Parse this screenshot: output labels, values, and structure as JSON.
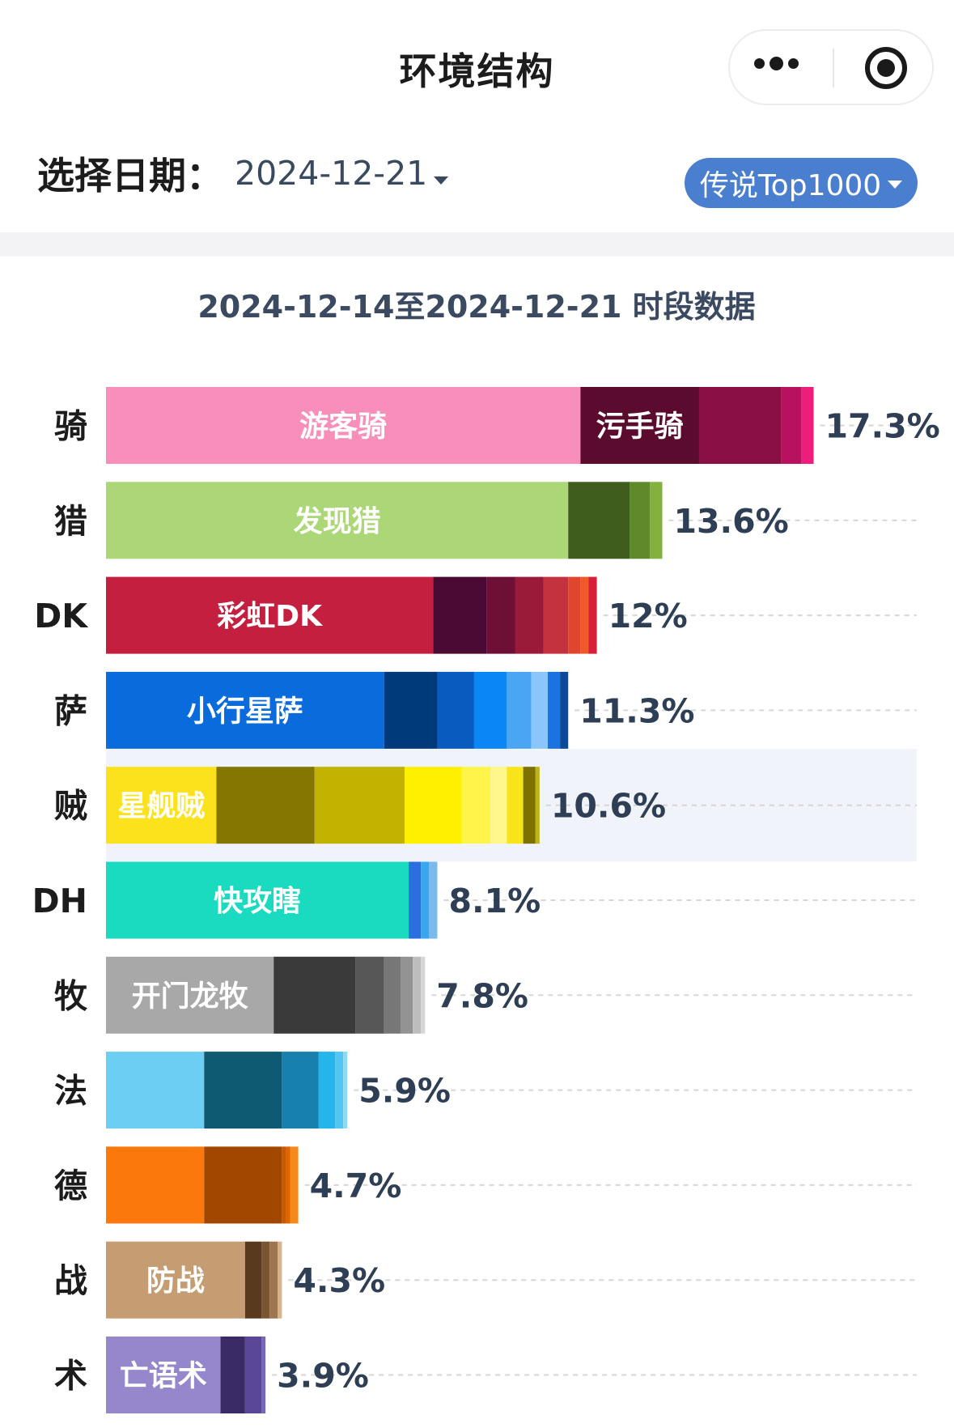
{
  "header": {
    "title": "环境结构"
  },
  "filters": {
    "date_label": "选择日期：",
    "date_value": "2024-12-21",
    "rank_label": "传说Top1000"
  },
  "chart_data": {
    "type": "bar",
    "orientation": "horizontal",
    "stacked": true,
    "title": "2024-12-14至2024-12-21 时段数据",
    "xlabel": "",
    "ylabel": "",
    "xlim": [
      0,
      20
    ],
    "grid": "dashed horizontal guide per row",
    "highlighted_category": "贼",
    "categories": [
      "骑",
      "猎",
      "DK",
      "萨",
      "贼",
      "DH",
      "牧",
      "法",
      "德",
      "战",
      "术"
    ],
    "totals": [
      "17.3%",
      "13.6%",
      "12%",
      "11.3%",
      "10.6%",
      "8.1%",
      "7.8%",
      "5.9%",
      "4.7%",
      "4.3%",
      "3.9%"
    ],
    "rows": [
      {
        "class": "骑",
        "total": 17.3,
        "segments": [
          {
            "name": "游客骑",
            "value": 11.6,
            "color": "#f78fba"
          },
          {
            "name": "污手骑",
            "value": 2.9,
            "color": "#5b0b2e"
          },
          {
            "name": "",
            "value": 2.0,
            "color": "#8a0f45"
          },
          {
            "name": "",
            "value": 0.5,
            "color": "#b8125f"
          },
          {
            "name": "",
            "value": 0.3,
            "color": "#ee1c7a"
          }
        ]
      },
      {
        "class": "猎",
        "total": 13.6,
        "segments": [
          {
            "name": "发现猎",
            "value": 11.3,
            "color": "#abd777"
          },
          {
            "name": "",
            "value": 1.5,
            "color": "#3f5d1d"
          },
          {
            "name": "",
            "value": 0.5,
            "color": "#5f8a2c"
          },
          {
            "name": "",
            "value": 0.3,
            "color": "#82b13f"
          }
        ]
      },
      {
        "class": "DK",
        "total": 12,
        "segments": [
          {
            "name": "彩虹DK",
            "value": 8.0,
            "color": "#c41f3e"
          },
          {
            "name": "",
            "value": 1.3,
            "color": "#4a0a33"
          },
          {
            "name": "",
            "value": 0.7,
            "color": "#6e0f36"
          },
          {
            "name": "",
            "value": 0.7,
            "color": "#9a1a3a"
          },
          {
            "name": "",
            "value": 0.6,
            "color": "#c4323f"
          },
          {
            "name": "",
            "value": 0.3,
            "color": "#e0452e"
          },
          {
            "name": "",
            "value": 0.2,
            "color": "#f05a2a"
          },
          {
            "name": "",
            "value": 0.2,
            "color": "#d6203a"
          }
        ]
      },
      {
        "class": "萨",
        "total": 11.3,
        "segments": [
          {
            "name": "小行星萨",
            "value": 6.8,
            "color": "#0a6cdc"
          },
          {
            "name": "",
            "value": 1.3,
            "color": "#003a7a"
          },
          {
            "name": "",
            "value": 0.9,
            "color": "#0a5bbf"
          },
          {
            "name": "",
            "value": 0.8,
            "color": "#0a86f5"
          },
          {
            "name": "",
            "value": 0.6,
            "color": "#4aa6f5"
          },
          {
            "name": "",
            "value": 0.4,
            "color": "#8ac6fa"
          },
          {
            "name": "",
            "value": 0.3,
            "color": "#1a73e0"
          },
          {
            "name": "",
            "value": 0.2,
            "color": "#0a4a9a"
          }
        ]
      },
      {
        "class": "贼",
        "total": 10.6,
        "segments": [
          {
            "name": "星舰贼",
            "value": 2.7,
            "color": "#fbe21c"
          },
          {
            "name": "",
            "value": 2.4,
            "color": "#847600"
          },
          {
            "name": "",
            "value": 2.2,
            "color": "#c2b300"
          },
          {
            "name": "",
            "value": 1.4,
            "color": "#fff000"
          },
          {
            "name": "",
            "value": 0.7,
            "color": "#fff44a"
          },
          {
            "name": "",
            "value": 0.4,
            "color": "#fff78c"
          },
          {
            "name": "",
            "value": 0.4,
            "color": "#f7e51a"
          },
          {
            "name": "",
            "value": 0.3,
            "color": "#7d7100"
          },
          {
            "name": "",
            "value": 0.1,
            "color": "#bfb31a"
          }
        ]
      },
      {
        "class": "DH",
        "total": 8.1,
        "segments": [
          {
            "name": "快攻瞎",
            "value": 7.4,
            "color": "#1adbbf"
          },
          {
            "name": "",
            "value": 0.3,
            "color": "#2a6ee0"
          },
          {
            "name": "",
            "value": 0.2,
            "color": "#39a6f0"
          },
          {
            "name": "",
            "value": 0.2,
            "color": "#7ab9ec"
          }
        ]
      },
      {
        "class": "牧",
        "total": 7.8,
        "segments": [
          {
            "name": "开门龙牧",
            "value": 4.1,
            "color": "#a8a8a8"
          },
          {
            "name": "",
            "value": 2.0,
            "color": "#3a3a3a"
          },
          {
            "name": "",
            "value": 0.7,
            "color": "#575757"
          },
          {
            "name": "",
            "value": 0.4,
            "color": "#777777"
          },
          {
            "name": "",
            "value": 0.3,
            "color": "#939393"
          },
          {
            "name": "",
            "value": 0.2,
            "color": "#bdbdbd"
          },
          {
            "name": "",
            "value": 0.1,
            "color": "#d6d6d6"
          }
        ]
      },
      {
        "class": "法",
        "total": 5.9,
        "segments": [
          {
            "name": "",
            "value": 2.4,
            "color": "#6ccef3"
          },
          {
            "name": "",
            "value": 1.9,
            "color": "#0d5a72"
          },
          {
            "name": "",
            "value": 0.9,
            "color": "#1780ac"
          },
          {
            "name": "",
            "value": 0.4,
            "color": "#25b5ea"
          },
          {
            "name": "",
            "value": 0.2,
            "color": "#52c6f2"
          },
          {
            "name": "",
            "value": 0.1,
            "color": "#8ed8f5"
          }
        ]
      },
      {
        "class": "德",
        "total": 4.7,
        "segments": [
          {
            "name": "",
            "value": 2.4,
            "color": "#fb780c"
          },
          {
            "name": "",
            "value": 1.9,
            "color": "#a24700"
          },
          {
            "name": "",
            "value": 0.1,
            "color": "#c75a00"
          },
          {
            "name": "",
            "value": 0.1,
            "color": "#e06400"
          },
          {
            "name": "",
            "value": 0.2,
            "color": "#f58a1a"
          }
        ]
      },
      {
        "class": "战",
        "total": 4.3,
        "segments": [
          {
            "name": "防战",
            "value": 3.4,
            "color": "#c69d73"
          },
          {
            "name": "",
            "value": 0.4,
            "color": "#5a3a1e"
          },
          {
            "name": "",
            "value": 0.2,
            "color": "#7a5532"
          },
          {
            "name": "",
            "value": 0.2,
            "color": "#9d7550"
          },
          {
            "name": "",
            "value": 0.1,
            "color": "#d8b48c"
          }
        ]
      },
      {
        "class": "术",
        "total": 3.9,
        "segments": [
          {
            "name": "亡语术",
            "value": 2.8,
            "color": "#9686cb"
          },
          {
            "name": "",
            "value": 0.6,
            "color": "#3a2a66"
          },
          {
            "name": "",
            "value": 0.4,
            "color": "#5b4798"
          },
          {
            "name": "",
            "value": 0.1,
            "color": "#7a66b8"
          }
        ]
      }
    ]
  }
}
